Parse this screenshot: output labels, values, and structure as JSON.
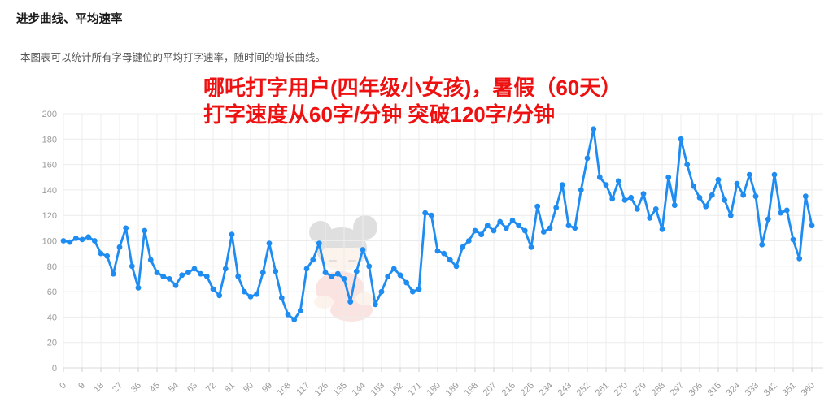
{
  "header": {
    "title": "进步曲线、平均速率",
    "description": "本图表可以统计所有字母键位的平均打字速率，随时间的增长曲线。"
  },
  "annotation": {
    "line1": "哪吒打字用户(四年级小女孩)，暑假（60天）",
    "line2": "打字速度从60字/分钟 突破120字/分钟",
    "color": "#ee1111"
  },
  "chart_data": {
    "type": "line",
    "x_start": 0,
    "x_step": 3,
    "values": [
      100,
      99,
      102,
      101,
      103,
      100,
      90,
      88,
      74,
      95,
      110,
      80,
      63,
      108,
      85,
      75,
      72,
      70,
      65,
      73,
      75,
      78,
      74,
      72,
      62,
      57,
      78,
      105,
      72,
      60,
      56,
      58,
      75,
      98,
      76,
      55,
      42,
      38,
      45,
      78,
      85,
      98,
      75,
      72,
      74,
      70,
      52,
      76,
      93,
      80,
      50,
      60,
      72,
      78,
      73,
      67,
      60,
      62,
      122,
      120,
      92,
      90,
      85,
      80,
      95,
      100,
      108,
      105,
      112,
      108,
      115,
      110,
      116,
      112,
      108,
      95,
      127,
      107,
      110,
      126,
      144,
      112,
      110,
      140,
      165,
      188,
      150,
      144,
      133,
      147,
      132,
      134,
      125,
      137,
      118,
      125,
      109,
      150,
      128,
      180,
      160,
      143,
      134,
      127,
      136,
      148,
      132,
      120,
      145,
      136,
      152,
      135,
      97,
      117,
      152,
      122,
      124,
      101,
      86,
      135,
      112
    ],
    "x_axis": {
      "min": 0,
      "max": 360,
      "tick_step": 9
    },
    "y_axis": {
      "min": 0,
      "max": 200,
      "tick_step": 20
    },
    "grid": true,
    "legend": false,
    "line_color": "#1e8cf0",
    "point_radius": 3.4
  }
}
